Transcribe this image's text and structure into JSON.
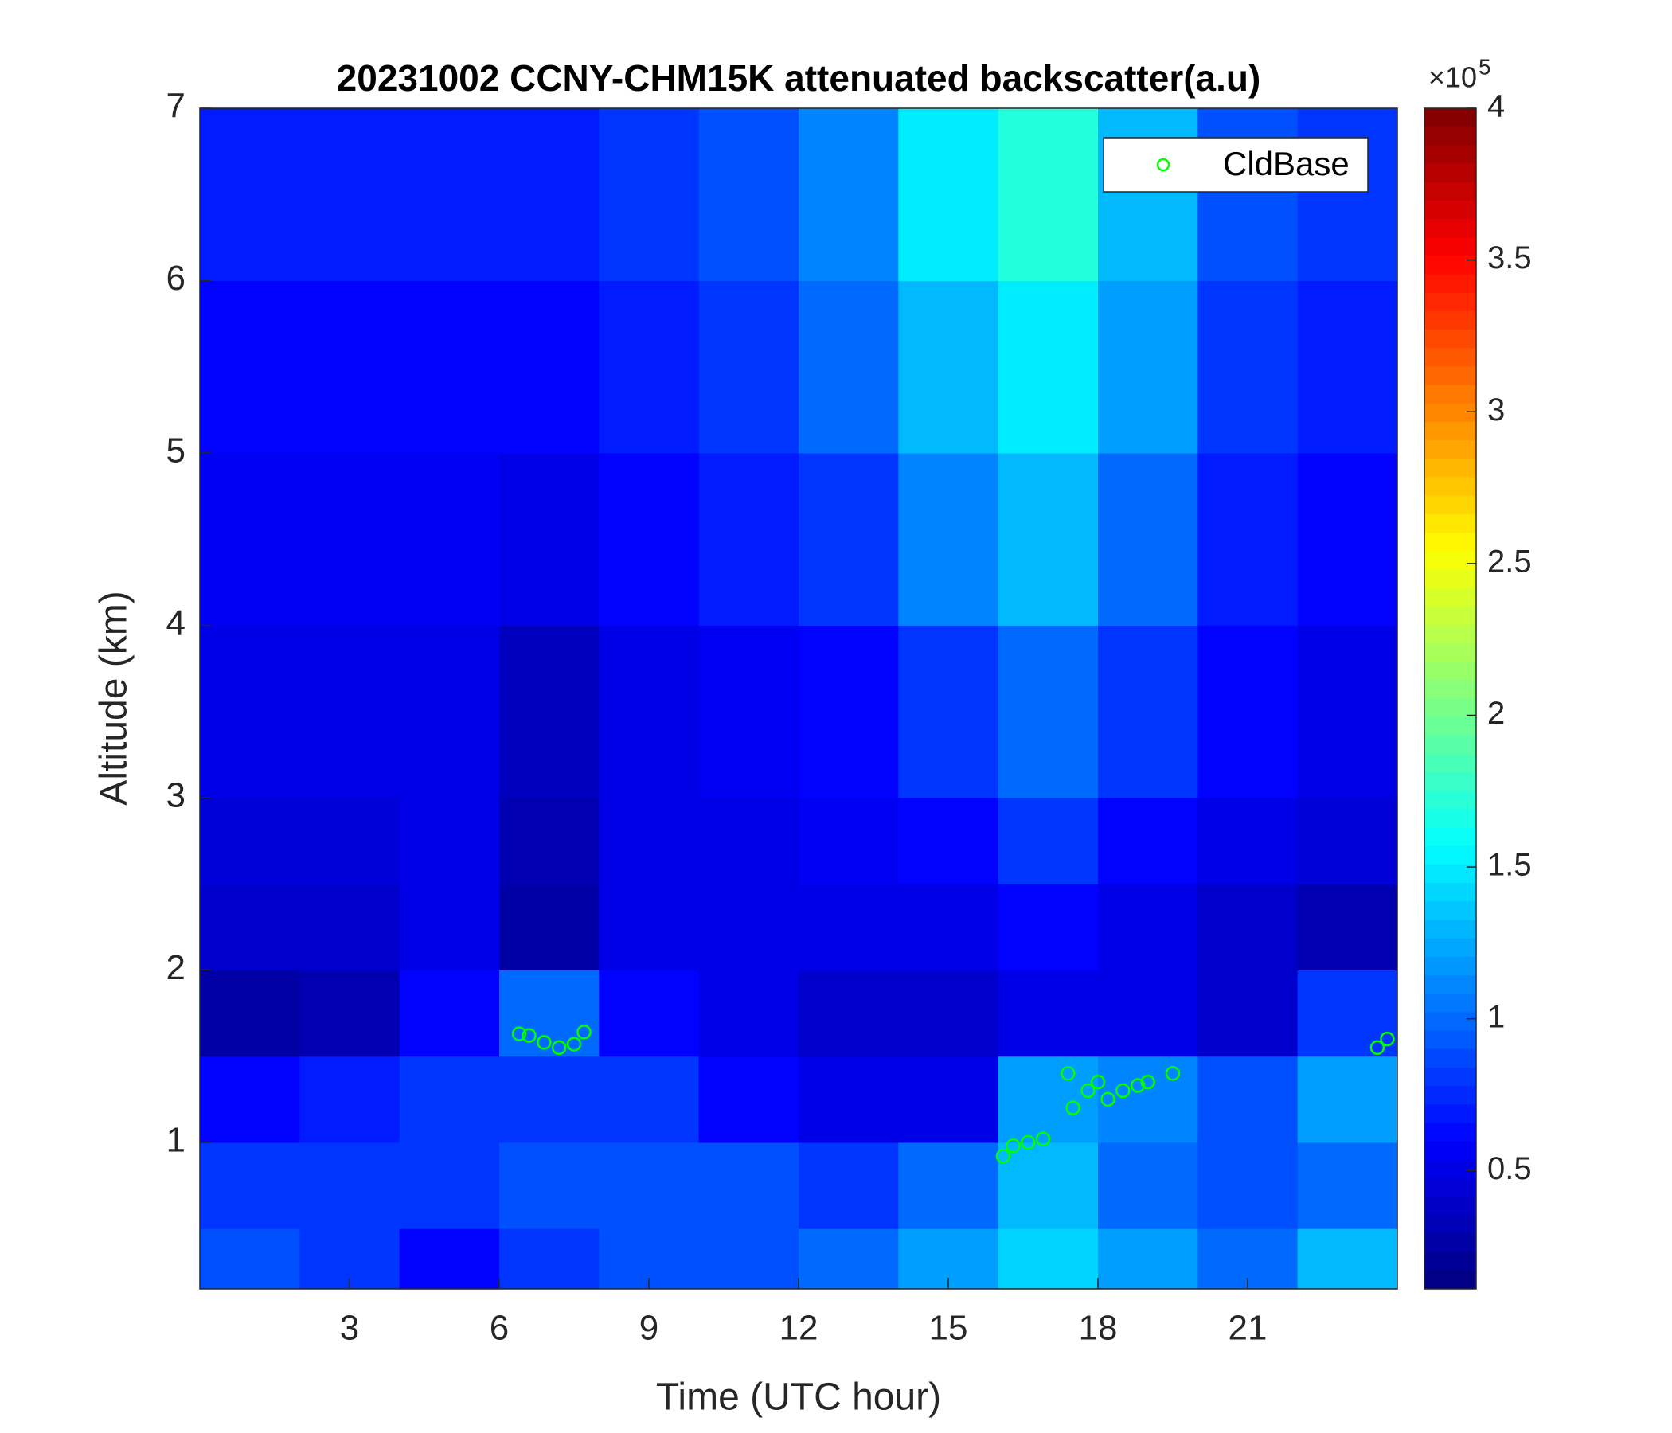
{
  "chart_data": {
    "type": "heatmap",
    "title": "20231002 CCNY-CHM15K attenuated backscatter(a.u)",
    "x_label": "Time (UTC hour)",
    "y_label": "Altitude (km)",
    "xlim": [
      0,
      24
    ],
    "xticks": [
      3,
      6,
      9,
      12,
      15,
      18,
      21
    ],
    "ylim": [
      0.15,
      7
    ],
    "yticks": [
      1,
      2,
      3,
      4,
      5,
      6,
      7
    ],
    "x_edges": [
      0,
      2,
      4,
      6,
      8,
      10,
      12,
      14,
      16,
      18,
      20,
      22,
      24
    ],
    "y_edges": [
      0.15,
      0.5,
      1,
      1.5,
      2,
      2.5,
      3,
      4,
      5,
      6,
      7
    ],
    "z": [
      [
        0.9,
        0.8,
        0.6,
        0.8,
        0.9,
        0.9,
        1.0,
        1.2,
        1.4,
        1.2,
        1.0,
        1.3
      ],
      [
        0.8,
        0.8,
        0.8,
        0.9,
        0.9,
        0.9,
        0.8,
        1.0,
        1.3,
        1.0,
        0.9,
        1.0
      ],
      [
        0.6,
        0.7,
        0.8,
        0.8,
        0.8,
        0.6,
        0.5,
        0.5,
        1.2,
        1.1,
        0.9,
        1.2
      ],
      [
        0.25,
        0.3,
        0.6,
        1.0,
        0.6,
        0.5,
        0.4,
        0.4,
        0.5,
        0.5,
        0.4,
        0.8
      ],
      [
        0.4,
        0.4,
        0.5,
        0.25,
        0.5,
        0.5,
        0.5,
        0.5,
        0.6,
        0.5,
        0.4,
        0.3
      ],
      [
        0.45,
        0.45,
        0.5,
        0.3,
        0.5,
        0.5,
        0.55,
        0.6,
        0.8,
        0.6,
        0.5,
        0.45
      ],
      [
        0.5,
        0.5,
        0.5,
        0.35,
        0.5,
        0.55,
        0.6,
        0.8,
        1.0,
        0.8,
        0.6,
        0.5
      ],
      [
        0.55,
        0.55,
        0.55,
        0.5,
        0.6,
        0.7,
        0.8,
        1.1,
        1.3,
        1.0,
        0.7,
        0.6
      ],
      [
        0.6,
        0.6,
        0.6,
        0.6,
        0.7,
        0.8,
        1.0,
        1.3,
        1.5,
        1.2,
        0.8,
        0.7
      ],
      [
        0.7,
        0.7,
        0.7,
        0.7,
        0.8,
        0.9,
        1.1,
        1.5,
        1.7,
        1.3,
        0.9,
        0.8
      ]
    ],
    "colormap": "jet",
    "clim": [
      0.11,
      4
    ],
    "colorbar_ticks": [
      0.5,
      1,
      1.5,
      2,
      2.5,
      3,
      3.5,
      4
    ],
    "colorbar_multiplier": "×10",
    "colorbar_exponent": "5",
    "cloud_base": {
      "name": "CldBase",
      "color": "#00ff00",
      "x": [
        6.4,
        6.6,
        6.9,
        7.2,
        7.5,
        7.7,
        16.1,
        16.3,
        16.6,
        16.9,
        17.4,
        17.5,
        17.8,
        18.0,
        18.2,
        18.5,
        18.8,
        19.0,
        19.5,
        23.6,
        23.8
      ],
      "y": [
        1.63,
        1.62,
        1.58,
        1.55,
        1.57,
        1.64,
        0.92,
        0.98,
        1.0,
        1.02,
        1.4,
        1.2,
        1.3,
        1.35,
        1.25,
        1.3,
        1.33,
        1.35,
        1.4,
        1.55,
        1.6
      ]
    },
    "legend_position": "upper right"
  }
}
